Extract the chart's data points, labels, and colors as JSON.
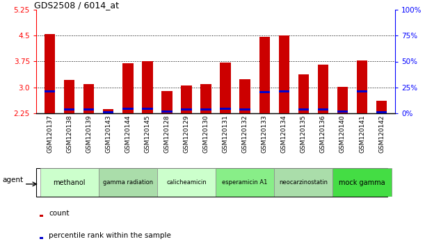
{
  "title": "GDS2508 / 6014_at",
  "samples": [
    "GSM120137",
    "GSM120138",
    "GSM120139",
    "GSM120143",
    "GSM120144",
    "GSM120145",
    "GSM120128",
    "GSM120129",
    "GSM120130",
    "GSM120131",
    "GSM120132",
    "GSM120133",
    "GSM120134",
    "GSM120135",
    "GSM120136",
    "GSM120140",
    "GSM120141",
    "GSM120142"
  ],
  "count_values": [
    4.55,
    3.22,
    3.1,
    2.36,
    3.7,
    3.76,
    2.9,
    3.05,
    3.1,
    3.72,
    3.23,
    4.47,
    4.5,
    3.37,
    3.65,
    3.02,
    3.78,
    2.62
  ],
  "percentile_values": [
    2.88,
    2.36,
    2.36,
    2.28,
    2.38,
    2.38,
    2.3,
    2.36,
    2.36,
    2.38,
    2.36,
    2.87,
    2.88,
    2.36,
    2.36,
    2.3,
    2.88,
    2.28
  ],
  "ylim": [
    2.25,
    5.25
  ],
  "yticks_left": [
    2.25,
    3.0,
    3.75,
    4.5,
    5.25
  ],
  "yticks_right": [
    0,
    25,
    50,
    75,
    100
  ],
  "bar_color": "#cc0000",
  "percentile_color": "#0000cc",
  "group_defs": [
    {
      "label": "methanol",
      "indices": [
        0,
        1,
        2
      ],
      "color": "#ccffcc"
    },
    {
      "label": "gamma radiation",
      "indices": [
        3,
        4,
        5
      ],
      "color": "#aaddaa"
    },
    {
      "label": "calicheamicin",
      "indices": [
        6,
        7,
        8
      ],
      "color": "#ccffcc"
    },
    {
      "label": "esperamicin A1",
      "indices": [
        9,
        10,
        11
      ],
      "color": "#88ee88"
    },
    {
      "label": "neocarzinostatin",
      "indices": [
        12,
        13,
        14
      ],
      "color": "#aaddaa"
    },
    {
      "label": "mock gamma",
      "indices": [
        15,
        16,
        17
      ],
      "color": "#44dd44"
    }
  ],
  "legend_count_label": "count",
  "legend_percentile_label": "percentile rank within the sample",
  "agent_label": "agent",
  "bar_width": 0.55
}
